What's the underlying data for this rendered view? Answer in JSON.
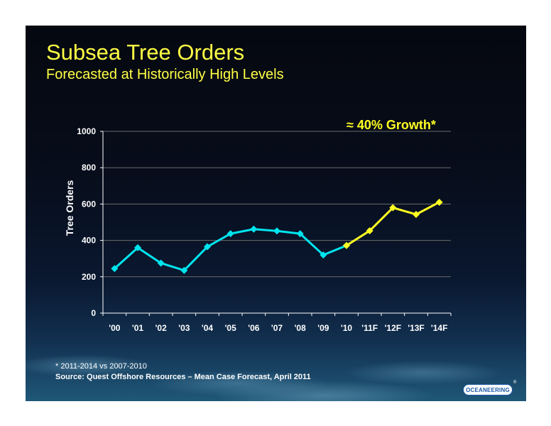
{
  "slide": {
    "title": "Subsea Tree Orders",
    "subtitle": "Forecasted at Historically High Levels",
    "footnote": "* 2011-2014 vs 2007-2010",
    "source": "Source:  Quest Offshore Resources – Mean Case Forecast, April 2011",
    "logo_text": "OCEANEERING",
    "logo_mark": "®",
    "background_color": "#05080f"
  },
  "chart_data": {
    "type": "line",
    "title": "",
    "xlabel": "",
    "ylabel": "Tree Orders",
    "ylim": [
      0,
      1000
    ],
    "yticks": [
      0,
      200,
      400,
      600,
      800,
      1000
    ],
    "grid": true,
    "annotation": "≈ 40% Growth*",
    "categories": [
      "'00",
      "'01",
      "'02",
      "'03",
      "'04",
      "'05",
      "'06",
      "'07",
      "'08",
      "'09",
      "'10",
      "'11F",
      "'12F",
      "'13F",
      "'14F"
    ],
    "series": [
      {
        "color": "#00e5ee",
        "x": [
          "'00",
          "'01",
          "'02",
          "'03",
          "'04",
          "'05",
          "'06",
          "'07",
          "'08",
          "'09",
          "'10"
        ],
        "values": [
          245,
          360,
          275,
          235,
          365,
          437,
          462,
          452,
          437,
          320,
          372
        ]
      },
      {
        "color": "#ffff22",
        "x": [
          "'10",
          "'11F",
          "'12F",
          "'13F",
          "'14F"
        ],
        "values": [
          372,
          453,
          580,
          543,
          610
        ]
      }
    ],
    "axis_color": "#ffffff",
    "gridline_color": "#6b6b6b"
  }
}
